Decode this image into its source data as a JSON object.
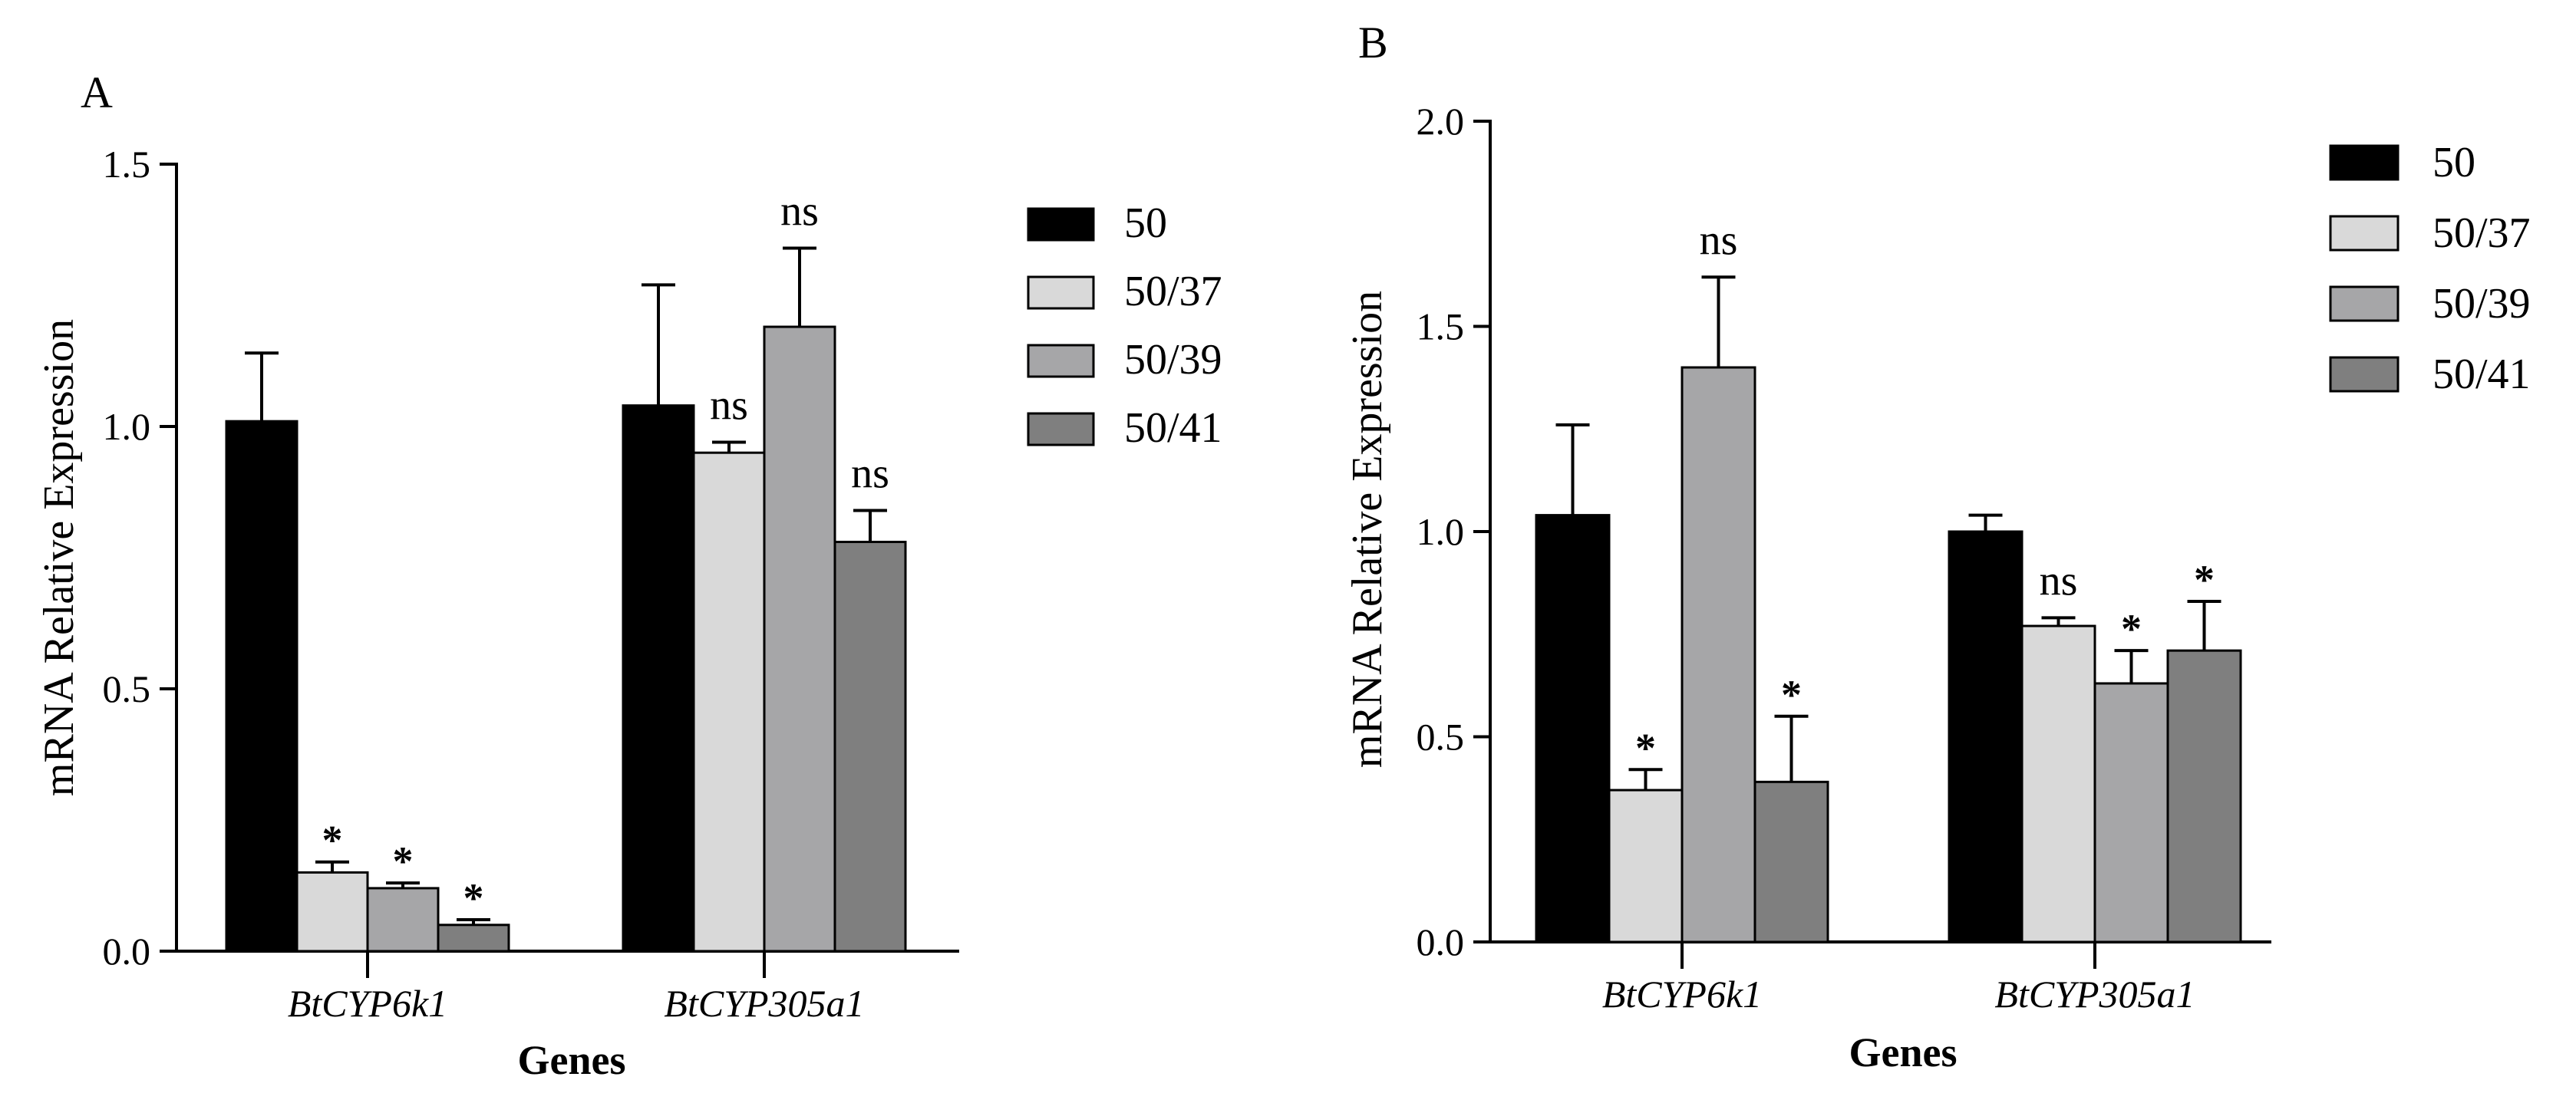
{
  "colors": {
    "50": "#000000",
    "50/37": "#d9d9d9",
    "50/39": "#a6a6a8",
    "50/41": "#7f7f7f"
  },
  "chart_data": [
    {
      "panel": "A",
      "type": "bar",
      "xlabel": "Genes",
      "ylabel": "mRNA Relative Expression",
      "ylim": [
        0,
        1.5
      ],
      "yticks": [
        "0.0",
        "0.5",
        "1.0",
        "1.5"
      ],
      "categories": [
        "BtCYP6k1",
        "BtCYP305a1"
      ],
      "legend": {
        "placement": "right",
        "entries": [
          "50",
          "50/37",
          "50/39",
          "50/41"
        ]
      },
      "series": [
        {
          "name": "50",
          "values": [
            1.01,
            1.04
          ],
          "errors": [
            0.13,
            0.23
          ],
          "labels": [
            "",
            ""
          ]
        },
        {
          "name": "50/37",
          "values": [
            0.15,
            0.95
          ],
          "errors": [
            0.02,
            0.02
          ],
          "labels": [
            "*",
            "ns"
          ]
        },
        {
          "name": "50/39",
          "values": [
            0.12,
            1.19
          ],
          "errors": [
            0.01,
            0.15
          ],
          "labels": [
            "*",
            "ns"
          ]
        },
        {
          "name": "50/41",
          "values": [
            0.05,
            0.78
          ],
          "errors": [
            0.01,
            0.06
          ],
          "labels": [
            "*",
            "ns"
          ]
        }
      ]
    },
    {
      "panel": "B",
      "type": "bar",
      "xlabel": "Genes",
      "ylabel": "mRNA Relative Expression",
      "ylim": [
        0,
        2.0
      ],
      "yticks": [
        "0.0",
        "0.5",
        "1.0",
        "1.5",
        "2.0"
      ],
      "categories": [
        "BtCYP6k1",
        "BtCYP305a1"
      ],
      "legend": {
        "placement": "top-right",
        "entries": [
          "50",
          "50/37",
          "50/39",
          "50/41"
        ]
      },
      "series": [
        {
          "name": "50",
          "values": [
            1.04,
            1.0
          ],
          "errors": [
            0.22,
            0.04
          ],
          "labels": [
            "",
            ""
          ]
        },
        {
          "name": "50/37",
          "values": [
            0.37,
            0.77
          ],
          "errors": [
            0.05,
            0.02
          ],
          "labels": [
            "*",
            "ns"
          ]
        },
        {
          "name": "50/39",
          "values": [
            1.4,
            0.63
          ],
          "errors": [
            0.22,
            0.08
          ],
          "labels": [
            "ns",
            "*"
          ]
        },
        {
          "name": "50/41",
          "values": [
            0.39,
            0.71
          ],
          "errors": [
            0.16,
            0.12
          ],
          "labels": [
            "*",
            "*"
          ]
        }
      ]
    }
  ]
}
